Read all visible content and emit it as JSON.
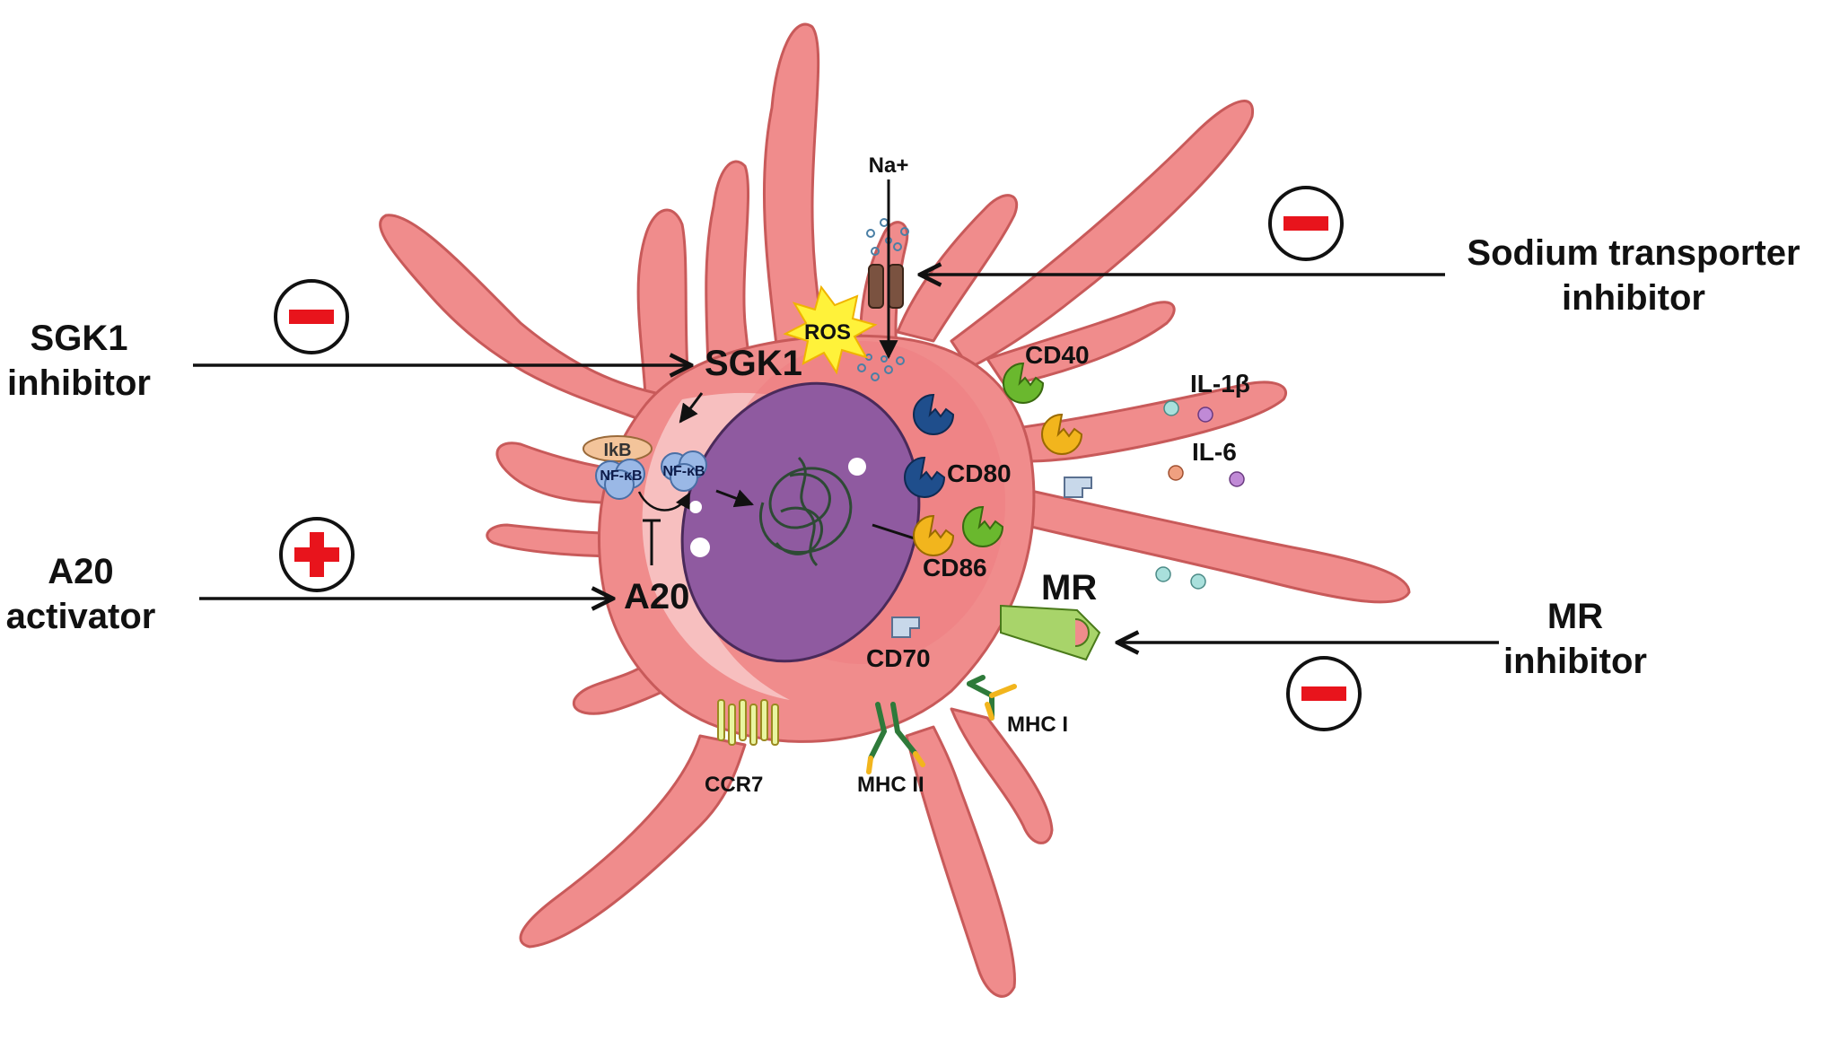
{
  "labels": {
    "sgk1_inhibitor_line1": "SGK1",
    "sgk1_inhibitor_line2": "inhibitor",
    "a20_activator_line1": "A20",
    "a20_activator_line2": "activator",
    "sodium_line1": "Sodium transporter",
    "sodium_line2": "inhibitor",
    "mr_inhibitor_line1": "MR",
    "mr_inhibitor_line2": "inhibitor",
    "na": "Na+",
    "ros": "ROS",
    "sgk1": "SGK1",
    "ikb": "IkB",
    "nfkb_left": "NF-κB",
    "nfkb_right": "NF-κB",
    "a20": "A20",
    "cd40": "CD40",
    "cd80": "CD80",
    "cd86": "CD86",
    "cd70": "CD70",
    "mr": "MR",
    "mhc1": "MHC I",
    "mhc2": "MHC II",
    "ccr7": "CCR7",
    "il1b": "IL-1β",
    "il6": "IL-6"
  },
  "signs": {
    "sgk1_inhibitor": "minus",
    "a20_activator": "plus",
    "sodium_transporter_inhibitor": "minus",
    "mr_inhibitor": "minus"
  },
  "colors": {
    "cell_body": "#f08c8c",
    "cell_outline": "#c85a5a",
    "nucleus": "#8f5aa0",
    "sign_red": "#e8141c",
    "cd80_blue": "#1f4e8c",
    "cd86_yellow": "#f2b51d",
    "cd40_green": "#6ab82e",
    "mr_green": "#a8d46a",
    "ros_yellow": "#fff23a"
  }
}
